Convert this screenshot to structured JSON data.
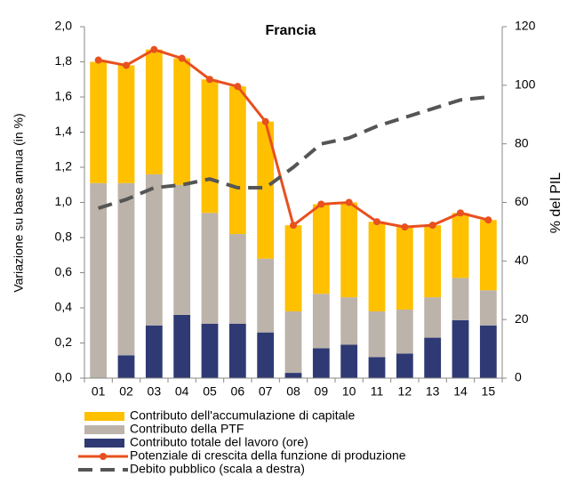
{
  "chart_data": {
    "type": "bar",
    "title": "Francia",
    "y_label": "Variazione su base annua (in %)",
    "y2_label": "% del PIL",
    "categories": [
      "01",
      "02",
      "03",
      "04",
      "05",
      "06",
      "07",
      "08",
      "09",
      "10",
      "11",
      "12",
      "13",
      "14",
      "15"
    ],
    "ylim": [
      0,
      2.0
    ],
    "yticks": [
      {
        "value": 0,
        "label": "0,0"
      },
      {
        "value": 0.2,
        "label": "0,2"
      },
      {
        "value": 0.4,
        "label": "0,4"
      },
      {
        "value": 0.6,
        "label": "0,6"
      },
      {
        "value": 0.8,
        "label": "0,8"
      },
      {
        "value": 1.0,
        "label": "1,0"
      },
      {
        "value": 1.2,
        "label": "1,2"
      },
      {
        "value": 1.4,
        "label": "1,4"
      },
      {
        "value": 1.6,
        "label": "1,6"
      },
      {
        "value": 1.8,
        "label": "1,8"
      },
      {
        "value": 2.0,
        "label": "2,0"
      }
    ],
    "y2lim": [
      0,
      120
    ],
    "y2ticks": [
      0,
      20,
      40,
      60,
      80,
      100,
      120
    ],
    "stacked": true,
    "series": [
      {
        "name": "Contributo dell'accumulazione di capitale",
        "type": "bar",
        "color": "#ffc000",
        "values": [
          0.69,
          0.67,
          0.71,
          0.72,
          0.76,
          0.84,
          0.78,
          0.49,
          0.51,
          0.54,
          0.51,
          0.47,
          0.41,
          0.37,
          0.4
        ]
      },
      {
        "name": "Contributo della PTF",
        "type": "bar",
        "color": "#bcb3aa",
        "values": [
          1.11,
          0.98,
          0.86,
          0.74,
          0.63,
          0.51,
          0.42,
          0.35,
          0.31,
          0.27,
          0.26,
          0.25,
          0.23,
          0.24,
          0.2
        ]
      },
      {
        "name": "Contributo totale del lavoro (ore)",
        "type": "bar",
        "color": "#2f3a74",
        "values": [
          0,
          0.13,
          0.3,
          0.36,
          0.31,
          0.31,
          0.26,
          0.03,
          0.17,
          0.19,
          0.12,
          0.14,
          0.23,
          0.33,
          0.3
        ]
      },
      {
        "name": "Potenziale di crescita della funzione di produzione",
        "type": "line",
        "color": "#e8501e",
        "markers": true,
        "values": [
          1.81,
          1.78,
          1.87,
          1.82,
          1.7,
          1.66,
          1.46,
          0.87,
          0.99,
          1.0,
          0.89,
          0.86,
          0.87,
          0.94,
          0.9
        ]
      },
      {
        "name": "Debito pubblico (scala a destra)",
        "type": "line",
        "color": "#555555",
        "dashed": true,
        "axis": "y2",
        "values": [
          58,
          61,
          65,
          66,
          68,
          65,
          65,
          72,
          80,
          82,
          86,
          89,
          92,
          95,
          96
        ]
      }
    ]
  }
}
